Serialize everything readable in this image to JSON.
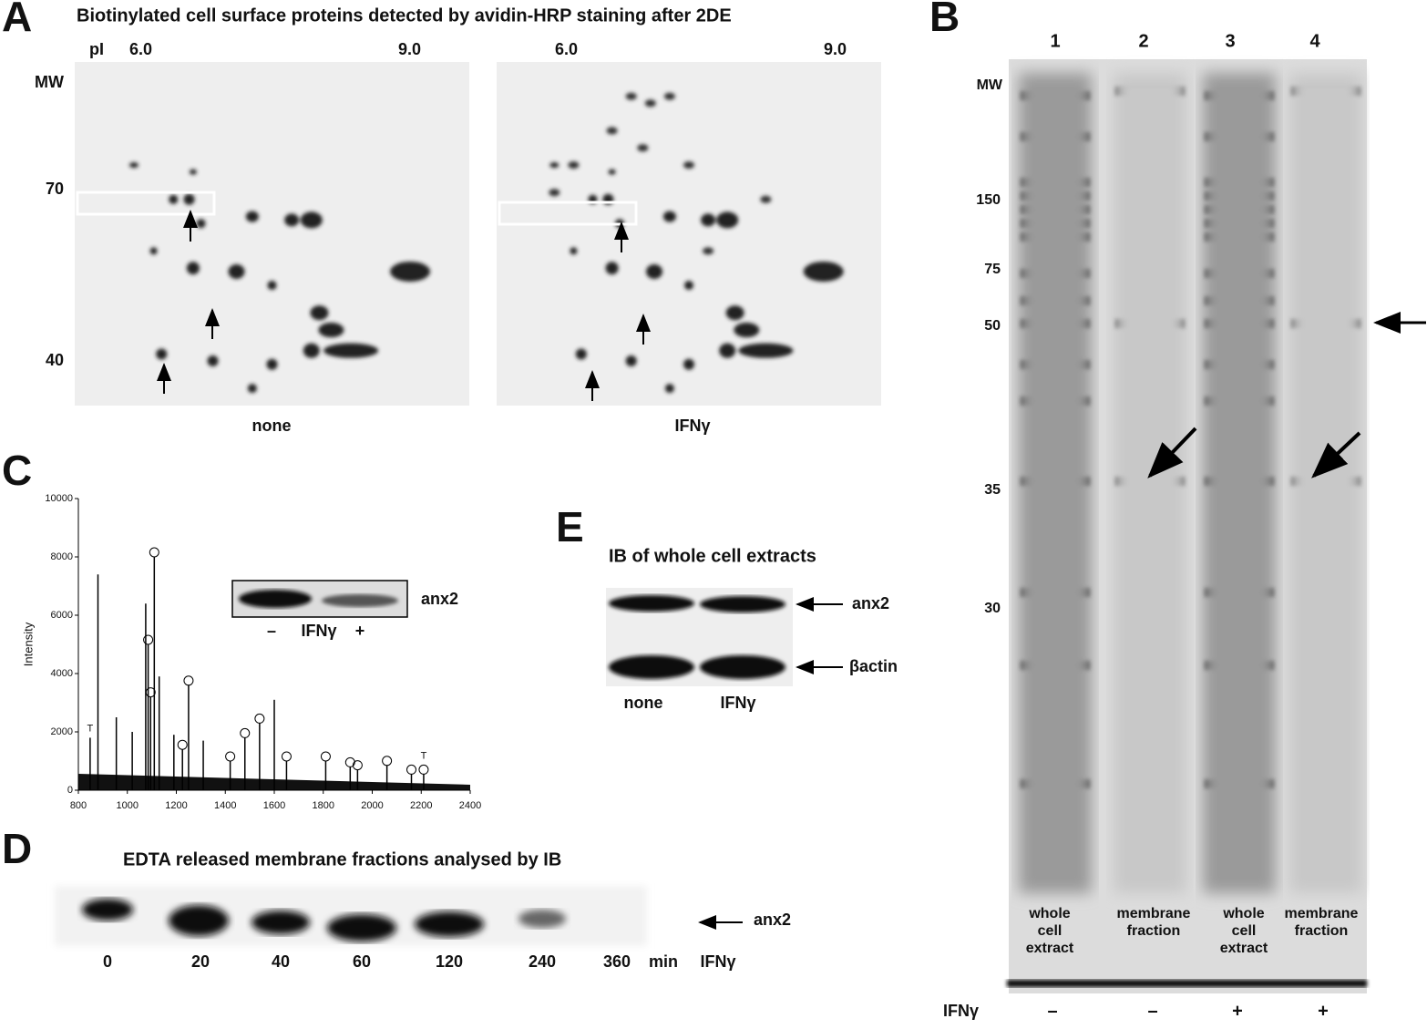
{
  "panels": {
    "A": {
      "label": "A",
      "title": "Biotinylated cell surface proteins detected by avidin-HRP staining after 2DE",
      "pi_label": "pI",
      "pi_ticks_left": [
        "6.0",
        "9.0"
      ],
      "pi_ticks_right": [
        "6.0",
        "9.0"
      ],
      "mw_label": "MW",
      "mw_ticks": [
        "70",
        "40"
      ],
      "gels": [
        "none",
        "IFNγ"
      ]
    },
    "B": {
      "label": "B",
      "lanes": [
        "1",
        "2",
        "3",
        "4"
      ],
      "mw_label": "MW",
      "mw_ticks": [
        "150",
        "75",
        "50",
        "35",
        "30"
      ],
      "captions": [
        [
          "whole",
          "cell",
          "extract"
        ],
        [
          "membrane",
          "fraction"
        ],
        [
          "whole",
          "cell",
          "extract"
        ],
        [
          "membrane",
          "fraction"
        ]
      ],
      "treatment": "IFNγ",
      "signs": [
        "–",
        "–",
        "+",
        "+"
      ]
    },
    "C": {
      "label": "C",
      "chart": {
        "type": "spectrum",
        "y_label": "Intensity",
        "xlim": [
          800,
          2400
        ],
        "ylim": [
          0,
          10000
        ],
        "xticks": [
          800,
          1000,
          1200,
          1400,
          1600,
          1800,
          2000,
          2200,
          2400
        ],
        "yticks": [
          0,
          2000,
          4000,
          6000,
          8000,
          10000
        ],
        "peaks": [
          {
            "x": 848,
            "y": 1800,
            "label": "T"
          },
          {
            "x": 880,
            "y": 7400
          },
          {
            "x": 955,
            "y": 2500
          },
          {
            "x": 1020,
            "y": 2000
          },
          {
            "x": 1075,
            "y": 6400
          },
          {
            "x": 1085,
            "y": 5000,
            "circled": true
          },
          {
            "x": 1095,
            "y": 3200,
            "circled": true
          },
          {
            "x": 1110,
            "y": 8000,
            "circled": true
          },
          {
            "x": 1130,
            "y": 3900
          },
          {
            "x": 1190,
            "y": 1900
          },
          {
            "x": 1225,
            "y": 1400,
            "circled": true
          },
          {
            "x": 1250,
            "y": 3600,
            "circled": true
          },
          {
            "x": 1310,
            "y": 1700
          },
          {
            "x": 1420,
            "y": 1000,
            "circled": true
          },
          {
            "x": 1480,
            "y": 1800,
            "circled": true
          },
          {
            "x": 1540,
            "y": 2300,
            "circled": true
          },
          {
            "x": 1600,
            "y": 3100
          },
          {
            "x": 1650,
            "y": 1000,
            "circled": true
          },
          {
            "x": 1810,
            "y": 1000,
            "circled": true
          },
          {
            "x": 1910,
            "y": 800,
            "circled": true
          },
          {
            "x": 1940,
            "y": 700,
            "circled": true
          },
          {
            "x": 2060,
            "y": 850,
            "circled": true
          },
          {
            "x": 2160,
            "y": 550,
            "circled": true
          },
          {
            "x": 2210,
            "y": 550,
            "circled": true,
            "label": "T"
          }
        ]
      },
      "inset": {
        "protein": "anx2",
        "minus": "–",
        "treatment": "IFNγ",
        "plus": "+"
      }
    },
    "D": {
      "label": "D",
      "title": "EDTA released membrane fractions analysed by IB",
      "protein": "anx2",
      "times": [
        "0",
        "20",
        "40",
        "60",
        "120",
        "240",
        "360"
      ],
      "unit": "min",
      "treatment": "IFNγ"
    },
    "E": {
      "label": "E",
      "title": "IB of whole cell extracts",
      "proteins": [
        "anx2",
        "βactin"
      ],
      "conditions": [
        "none",
        "IFNγ"
      ]
    }
  }
}
